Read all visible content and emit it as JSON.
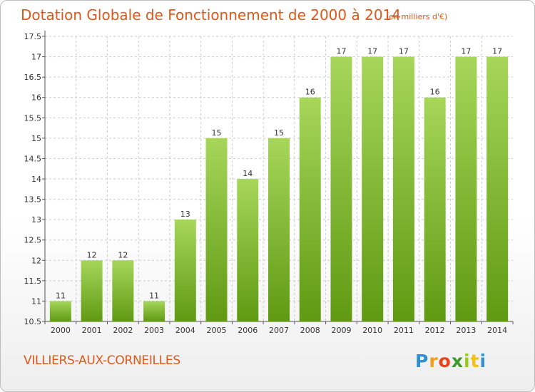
{
  "chart_data": {
    "type": "bar",
    "title": "Dotation Globale de Fonctionnement de 2000 à 2014",
    "subtitle": "(en milliers d'€)",
    "categories": [
      "2000",
      "2001",
      "2002",
      "2003",
      "2004",
      "2005",
      "2006",
      "2007",
      "2008",
      "2009",
      "2010",
      "2011",
      "2012",
      "2013",
      "2014"
    ],
    "values": [
      11,
      12,
      12,
      11,
      13,
      15,
      14,
      15,
      16,
      17,
      17,
      17,
      16,
      17,
      17
    ],
    "data_labels": [
      "11",
      "12",
      "12",
      "11",
      "13",
      "15",
      "14",
      "15",
      "16",
      "17",
      "17",
      "17",
      "16",
      "17",
      "17"
    ],
    "ylim": [
      10.5,
      17.5
    ],
    "yticks": [
      "10.5",
      "11",
      "11.5",
      "12",
      "12.5",
      "13",
      "13.5",
      "14",
      "14.5",
      "15",
      "15.5",
      "16",
      "16.5",
      "17",
      "17.5"
    ],
    "grid": true,
    "xlabel": "",
    "ylabel": "",
    "bar_color_top": "#a6d65a",
    "bar_color_bottom": "#5f9a12",
    "grid_color": "#cccccc"
  },
  "footer": {
    "town": "VILLIERS-AUX-CORNEILLES",
    "logo_letters": [
      "P",
      "r",
      "o",
      "x",
      "i",
      "t",
      "i"
    ]
  },
  "colors": {
    "accent": "#e0571a"
  }
}
